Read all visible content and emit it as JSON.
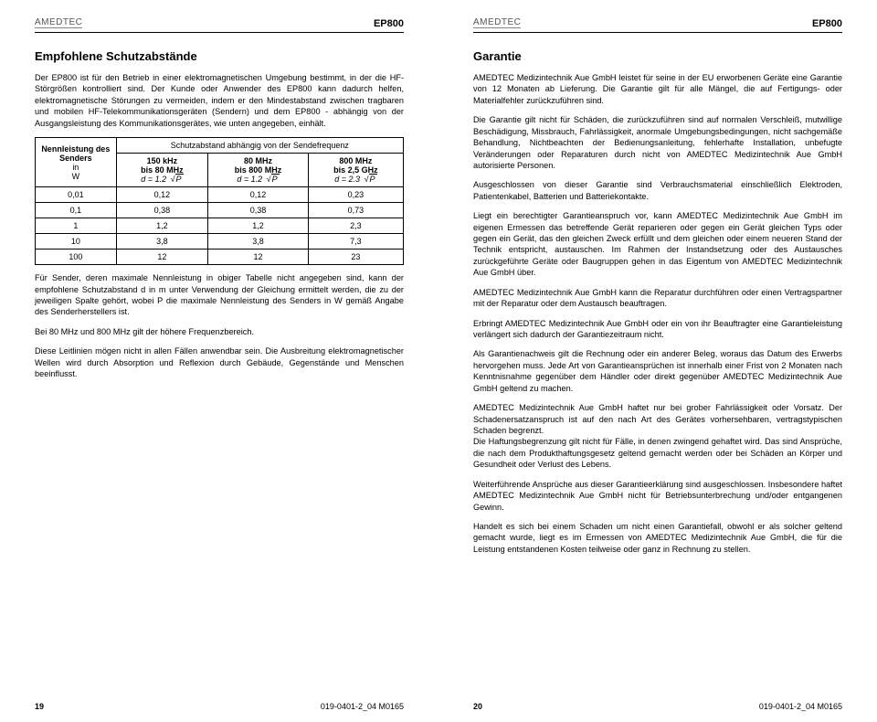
{
  "brand": "AMEDTEC",
  "model": "EP800",
  "left": {
    "title": "Empfohlene Schutzabstände",
    "p1": "Der EP800 ist für den Betrieb in einer elektromagnetischen Umgebung bestimmt, in der die HF-Störgrößen kontrolliert sind. Der Kunde oder Anwender des EP800 kann dadurch helfen, elektromagnetische Störungen zu vermeiden, indem er den Mindestabstand zwischen tragbaren und mobilen HF-Telekommunikationsgeräten (Sendern) und dem EP800 - abhängig von der Ausgangsleistung des Kommunikationsgerätes, wie unten angegeben, einhält.",
    "table": {
      "row_header": [
        "Nennleistung des",
        "Senders",
        "in",
        "W"
      ],
      "merged_header": "Schutzabstand abhängig von der Sendefrequenz",
      "cols": [
        {
          "l1": "150 kHz",
          "l2": "bis 80 MHz",
          "coef": "1.2"
        },
        {
          "l1": "80 MHz",
          "l2": "bis 800 MHz",
          "coef": "1.2"
        },
        {
          "l1": "800 MHz",
          "l2": "bis 2,5 GHz",
          "coef": "2.3"
        }
      ],
      "rows": [
        {
          "p": "0,01",
          "v": [
            "0,12",
            "0,12",
            "0,23"
          ]
        },
        {
          "p": "0,1",
          "v": [
            "0,38",
            "0,38",
            "0,73"
          ]
        },
        {
          "p": "1",
          "v": [
            "1,2",
            "1,2",
            "2,3"
          ]
        },
        {
          "p": "10",
          "v": [
            "3,8",
            "3,8",
            "7,3"
          ]
        },
        {
          "p": "100",
          "v": [
            "12",
            "12",
            "23"
          ]
        }
      ]
    },
    "p2": "Für Sender, deren maximale Nennleistung in obiger Tabelle nicht angegeben sind, kann der empfohlene Schutzabstand d in m unter Verwendung der Gleichung ermittelt werden, die zu der jeweiligen Spalte gehört, wobei P die maximale Nennleistung des Senders in W gemäß Angabe des Senderherstellers ist.",
    "p3": "Bei 80 MHz und 800 MHz gilt der höhere Frequenzbereich.",
    "p4": "Diese Leitlinien mögen nicht in allen Fällen anwendbar sein. Die Ausbreitung elektromagnetischer Wellen wird durch Absorption und Reflexion durch Gebäude, Gegenstände und Menschen beeinflusst.",
    "page_num": "19",
    "doc_id": "019-0401-2_04 M0165"
  },
  "right": {
    "title": "Garantie",
    "p1": "AMEDTEC Medizintechnik Aue GmbH leistet für seine in der EU erworbenen Geräte eine Garantie von 12 Monaten ab Lieferung. Die Garantie gilt für alle Mängel, die auf Fertigungs- oder Materialfehler zurückzuführen sind.",
    "p2": "Die Garantie gilt nicht für Schäden, die zurückzuführen sind auf normalen Verschleiß, mutwillige Beschädigung, Missbrauch, Fahrlässigkeit, anormale Umgebungsbedingungen, nicht sachgemäße Behandlung, Nichtbeachten der Bedienungsanleitung, fehlerhafte Installation, unbefugte Veränderungen oder Reparaturen durch nicht von AMEDTEC Medizintechnik Aue GmbH autorisierte Personen.",
    "p3": "Ausgeschlossen von dieser Garantie sind Verbrauchsmaterial einschließlich Elektroden, Patientenkabel, Batterien und Batteriekontakte.",
    "p4": "Liegt ein berechtigter Garantieanspruch vor, kann AMEDTEC Medizintechnik Aue GmbH im eigenen Ermessen das betreffende Gerät reparieren oder gegen ein Gerät gleichen Typs oder gegen ein Gerät, das den gleichen Zweck erfüllt und dem gleichen oder einem neueren Stand der Technik entspricht, austauschen. Im Rahmen der Instandsetzung oder des Austausches zurückgeführte Geräte oder Baugruppen gehen in das Eigentum von AMEDTEC Medizintechnik Aue GmbH über.",
    "p5": "AMEDTEC Medizintechnik Aue GmbH kann die Reparatur durchführen oder einen Vertragspartner mit der Reparatur oder dem Austausch beauftragen.",
    "p6": "Erbringt AMEDTEC Medizintechnik Aue GmbH oder ein von ihr Beauftragter eine Garantieleistung verlängert sich dadurch der Garantiezeitraum nicht.",
    "p7": "Als Garantienachweis gilt die Rechnung oder ein anderer Beleg, woraus das Datum des Erwerbs hervorgehen muss. Jede Art von Garantieansprüchen ist innerhalb einer Frist von 2 Monaten nach Kenntnisnahme gegenüber dem Händler oder direkt gegenüber AMEDTEC Medizintechnik Aue GmbH geltend zu machen.",
    "p8": "AMEDTEC Medizintechnik Aue GmbH haftet nur bei grober Fahrlässigkeit oder Vorsatz. Der Schadenersatzanspruch ist auf den nach Art des Gerätes vorhersehbaren, vertragstypischen Schaden begrenzt.\nDie Haftungsbegrenzung gilt nicht für Fälle, in denen zwingend gehaftet wird. Das sind Ansprüche, die nach dem Produkthaftungsgesetz geltend gemacht werden oder bei Schäden an Körper und Gesundheit oder Verlust des Lebens.",
    "p9": "Weiterführende Ansprüche aus dieser Garantieerklärung sind ausgeschlossen. Insbesondere haftet AMEDTEC Medizintechnik Aue GmbH nicht für Betriebsunterbrechung und/oder entgangenen Gewinn.",
    "p10": "Handelt es sich bei einem Schaden um nicht einen Garantiefall, obwohl er als solcher geltend gemacht wurde, liegt es im Ermessen von AMEDTEC Medizintechnik Aue GmbH, die für die Leistung entstandenen Kosten teilweise oder ganz in Rechnung zu stellen.",
    "page_num": "20",
    "doc_id": "019-0401-2_04 M0165"
  }
}
